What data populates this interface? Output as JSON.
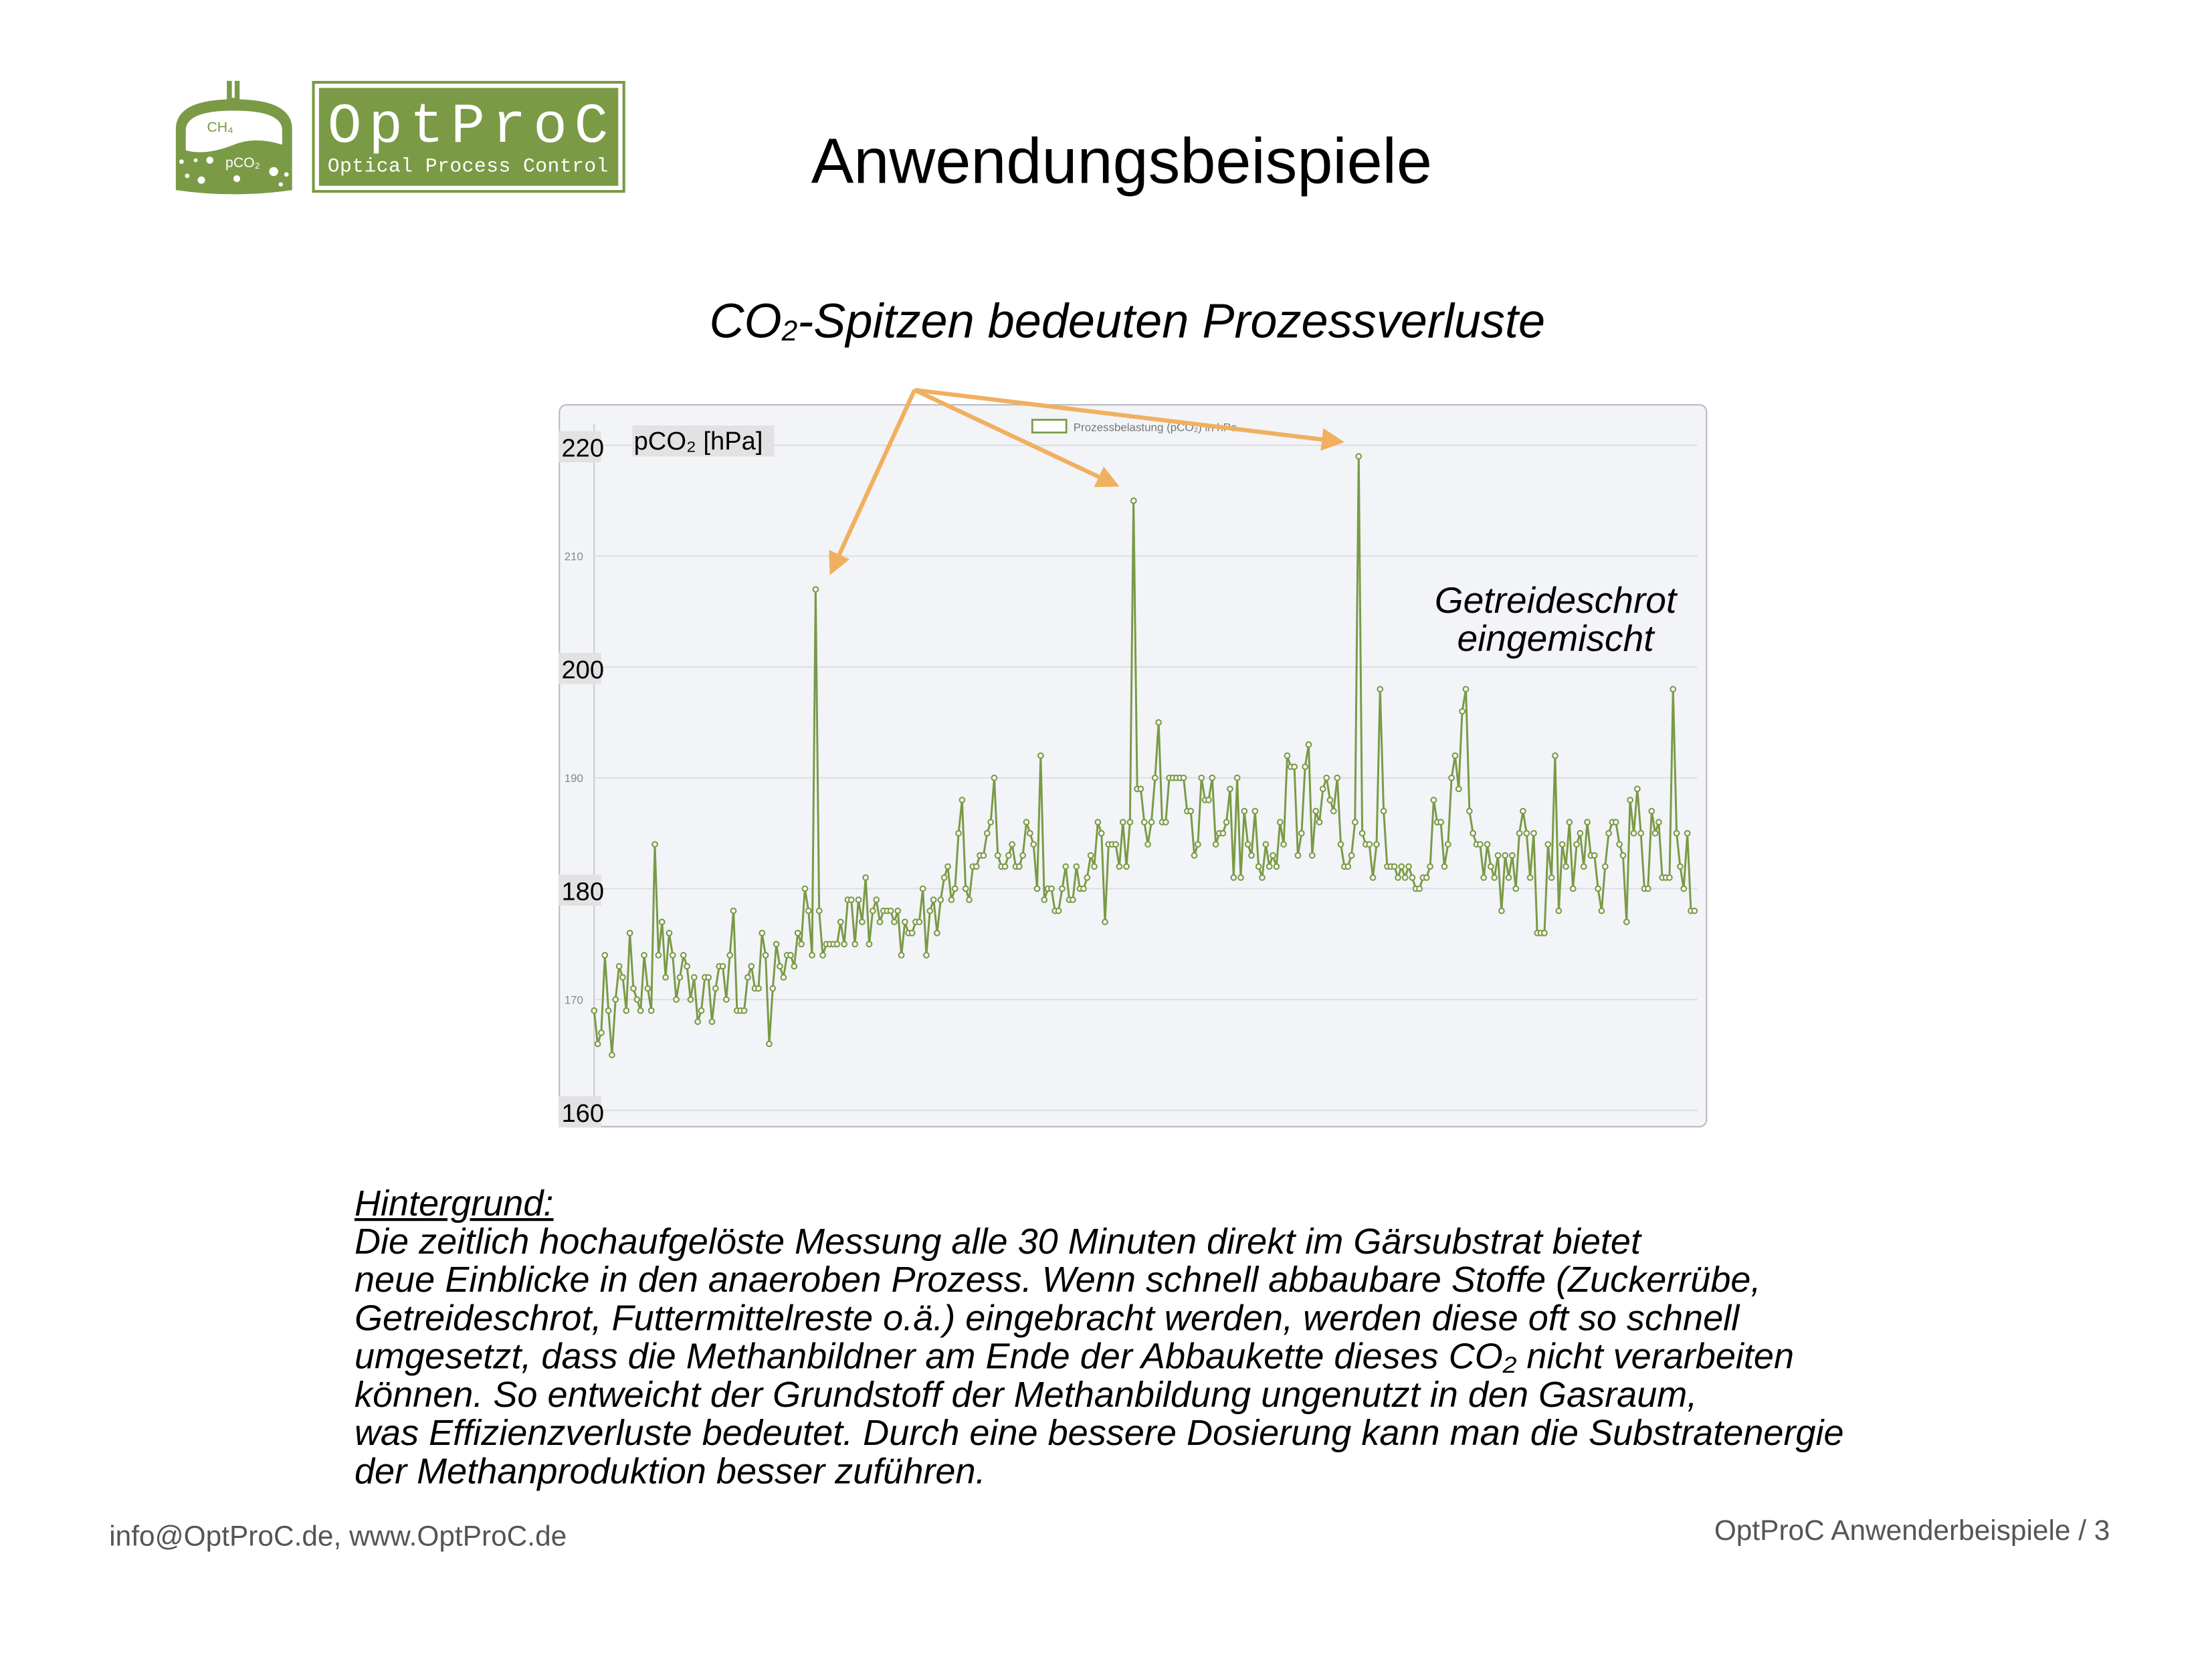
{
  "logo": {
    "name": "OptProC",
    "tagline": "Optical Process Control",
    "icon_labels": [
      "CH4",
      "pCO2"
    ],
    "color": "#7a9a45"
  },
  "header": {
    "title": "Anwendungsbeispiele"
  },
  "subtitle": {
    "prefix": "CO",
    "sub": "2",
    "suffix": "-Spitzen bedeuten Prozessverluste"
  },
  "annotation": {
    "line1": "Getreideschrot",
    "line2": "eingemischt"
  },
  "background": {
    "heading": "Hintergrund:",
    "lines": [
      "Die zeitlich hochaufgelöste Messung alle 30 Minuten direkt im Gärsubstrat bietet",
      "neue Einblicke in den anaeroben Prozess. Wenn schnell abbaubare Stoffe (Zuckerrübe,",
      "Getreideschrot, Futtermittelreste o.ä.) eingebracht werden, werden diese oft so schnell",
      "umgesetzt, dass die Methanbildner am Ende der Abbaukette dieses CO₂ nicht verarbeiten",
      "können. So entweicht der Grundstoff der Methanbildung ungenutzt in den Gasraum,",
      "was Effizienzverluste bedeutet. Durch eine bessere Dosierung kann man die Substratenergie",
      "der Methanproduktion besser zuführen."
    ]
  },
  "footer": {
    "contact": "info@OptProC.de, www.OptProC.de",
    "page": "OptProC Anwenderbeispiele / 3"
  },
  "chart_data": {
    "type": "line",
    "ylabel": "pCO₂ [hPa]",
    "legend": "Prozessbelastung (pCO₂) in hPa",
    "legend_placement": "top-center",
    "ylim": [
      160,
      220
    ],
    "yticks_large": [
      "220",
      "200",
      "180",
      "160"
    ],
    "yticks_small": [
      "210",
      "190",
      "170"
    ],
    "grid": true,
    "line_color": "#7a9a45",
    "arrow_color": "#f0b060",
    "background_color": "#f2f4f8",
    "highlighted_peaks": [
      207,
      215,
      219
    ],
    "values": [
      169,
      166,
      167,
      174,
      169,
      165,
      170,
      173,
      172,
      169,
      176,
      171,
      170,
      169,
      174,
      171,
      169,
      184,
      174,
      177,
      172,
      176,
      174,
      170,
      172,
      174,
      173,
      170,
      172,
      168,
      169,
      172,
      172,
      168,
      171,
      173,
      173,
      170,
      174,
      178,
      169,
      169,
      169,
      172,
      173,
      171,
      171,
      176,
      174,
      166,
      171,
      175,
      173,
      172,
      174,
      174,
      173,
      176,
      175,
      180,
      178,
      174,
      207,
      178,
      174,
      175,
      175,
      175,
      175,
      177,
      175,
      179,
      179,
      175,
      179,
      177,
      181,
      175,
      178,
      179,
      177,
      178,
      178,
      178,
      177,
      178,
      174,
      177,
      176,
      176,
      177,
      177,
      180,
      174,
      178,
      179,
      176,
      179,
      181,
      182,
      179,
      180,
      185,
      188,
      180,
      179,
      182,
      182,
      183,
      183,
      185,
      186,
      190,
      183,
      182,
      182,
      183,
      184,
      182,
      182,
      183,
      186,
      185,
      184,
      180,
      192,
      179,
      180,
      180,
      178,
      178,
      180,
      182,
      179,
      179,
      182,
      180,
      180,
      181,
      183,
      182,
      186,
      185,
      177,
      184,
      184,
      184,
      182,
      186,
      182,
      186,
      215,
      189,
      189,
      186,
      184,
      186,
      190,
      195,
      186,
      186,
      190,
      190,
      190,
      190,
      190,
      187,
      187,
      183,
      184,
      190,
      188,
      188,
      190,
      184,
      185,
      185,
      186,
      189,
      181,
      190,
      181,
      187,
      184,
      183,
      187,
      182,
      181,
      184,
      182,
      183,
      182,
      186,
      184,
      192,
      191,
      191,
      183,
      185,
      191,
      193,
      183,
      187,
      186,
      189,
      190,
      188,
      187,
      190,
      184,
      182,
      182,
      183,
      186,
      219,
      185,
      184,
      184,
      181,
      184,
      198,
      187,
      182,
      182,
      182,
      181,
      182,
      181,
      182,
      181,
      180,
      180,
      181,
      181,
      182,
      188,
      186,
      186,
      182,
      184,
      190,
      192,
      189,
      196,
      198,
      187,
      185,
      184,
      184,
      181,
      184,
      182,
      181,
      183,
      178,
      183,
      181,
      183,
      180,
      185,
      187,
      185,
      181,
      185,
      176,
      176,
      176,
      184,
      181,
      192,
      178,
      184,
      182,
      186,
      180,
      184,
      185,
      182,
      186,
      183,
      183,
      180,
      178,
      182,
      185,
      186,
      186,
      184,
      183,
      177,
      188,
      185,
      189,
      185,
      180,
      180,
      187,
      185,
      186,
      181,
      181,
      181,
      198,
      185,
      182,
      180,
      185,
      178,
      178
    ]
  }
}
